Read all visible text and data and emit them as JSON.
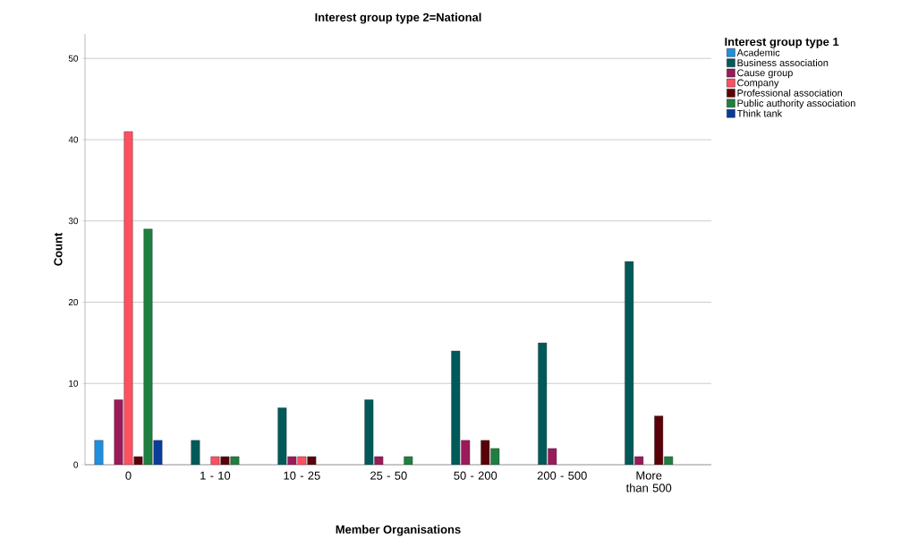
{
  "chart_data": {
    "type": "bar",
    "title": "Interest group type 2=National",
    "xlabel": "Member Organisations",
    "ylabel": "Count",
    "legend_title": "Interest group type 1",
    "categories": [
      "0",
      "1 - 10",
      "10 - 25",
      "25 - 50",
      "50 - 200",
      "200 - 500",
      "More than 500"
    ],
    "series": [
      {
        "name": "Academic",
        "color": "#1f8fe0",
        "values": [
          3,
          null,
          null,
          null,
          null,
          null,
          null
        ]
      },
      {
        "name": "Business association",
        "color": "#005a5a",
        "values": [
          null,
          3,
          7,
          8,
          14,
          15,
          25
        ]
      },
      {
        "name": "Cause group",
        "color": "#9b1a5a",
        "values": [
          8,
          null,
          1,
          1,
          3,
          2,
          1
        ]
      },
      {
        "name": "Company",
        "color": "#ff5060",
        "values": [
          41,
          1,
          1,
          null,
          null,
          null,
          null
        ]
      },
      {
        "name": "Professional association",
        "color": "#5a0008",
        "values": [
          1,
          1,
          1,
          null,
          3,
          null,
          6
        ]
      },
      {
        "name": "Public authority association",
        "color": "#1e8040",
        "values": [
          29,
          1,
          null,
          1,
          2,
          null,
          1
        ]
      },
      {
        "name": "Think tank",
        "color": "#0a3c9c",
        "values": [
          3,
          null,
          null,
          null,
          null,
          null,
          null
        ]
      }
    ],
    "ylim": [
      0,
      53
    ],
    "yticks": [
      0,
      10,
      20,
      30,
      40,
      50
    ],
    "grid": "y",
    "legend": "right"
  }
}
